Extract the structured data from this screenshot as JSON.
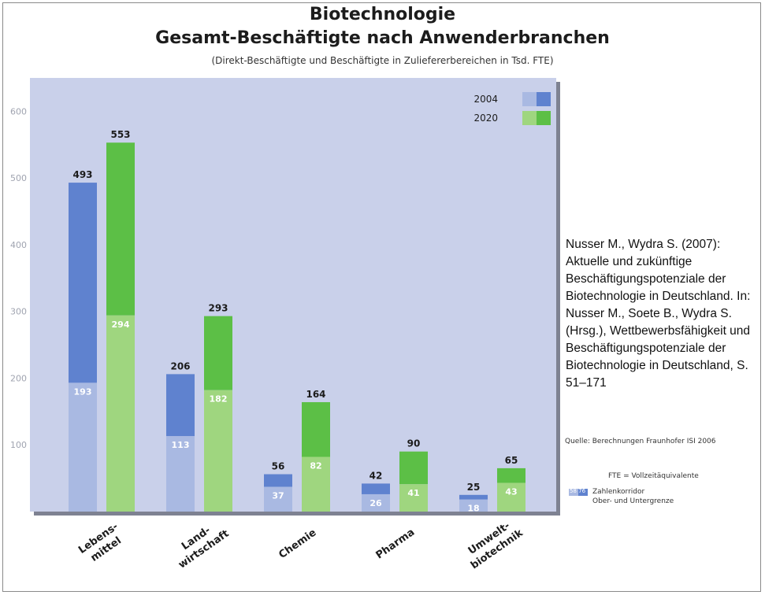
{
  "header": {
    "title": "Biotechnologie",
    "subtitle": "Gesamt-Beschäftigte nach Anwenderbranchen",
    "note": "(Direkt-Beschäftigte und Beschäftigte in Zuliefererbereichen in Tsd. FTE)"
  },
  "citation": "Nusser M., Wydra S. (2007): Aktuelle und zukünftige Beschäftigungspotenziale der Biotechnologie in Deutschland. In: Nusser M., Soete B., Wydra S. (Hrsg.), Wettbewerbsfähigkeit und Beschäftigungspotenziale der Biotechnologie in Deutschland, S. 51–171",
  "source": "Quelle: Berechnungen Fraunhofer ISI 2006",
  "fte_note": "FTE = Vollzeitäquivalente",
  "corridor_legend": {
    "swatch_label": "58  76",
    "line1": "Zahlenkorridor",
    "line2": "Ober- und Untergrenze"
  },
  "colors": {
    "plot_bg": "#c9d0ea",
    "blue_upper": "#5f82cf",
    "blue_lower": "#a9b9e2",
    "green_upper": "#5cbf46",
    "green_lower": "#9fd67f",
    "text_dark": "#1c1c1c",
    "tick_text": "#a0a4b0"
  },
  "chart_data": {
    "type": "bar",
    "title": "Biotechnologie",
    "subtitle": "Gesamt-Beschäftigte nach Anwenderbranchen",
    "categories": [
      [
        "Lebens-",
        "mittel"
      ],
      [
        "Land-",
        "wirtschaft"
      ],
      [
        "Chemie"
      ],
      [
        "Pharma"
      ],
      [
        "Umwelt-",
        "biotechnik"
      ]
    ],
    "ylim": [
      0,
      650
    ],
    "yticks": [
      100,
      200,
      300,
      400,
      500,
      600
    ],
    "grid": false,
    "legend_position": "top-right",
    "series": [
      {
        "name": "2004",
        "upper": [
          493,
          206,
          56,
          42,
          25
        ],
        "lower": [
          193,
          113,
          37,
          26,
          18
        ]
      },
      {
        "name": "2020",
        "upper": [
          553,
          293,
          164,
          90,
          65
        ],
        "lower": [
          294,
          182,
          82,
          41,
          43
        ]
      }
    ]
  }
}
